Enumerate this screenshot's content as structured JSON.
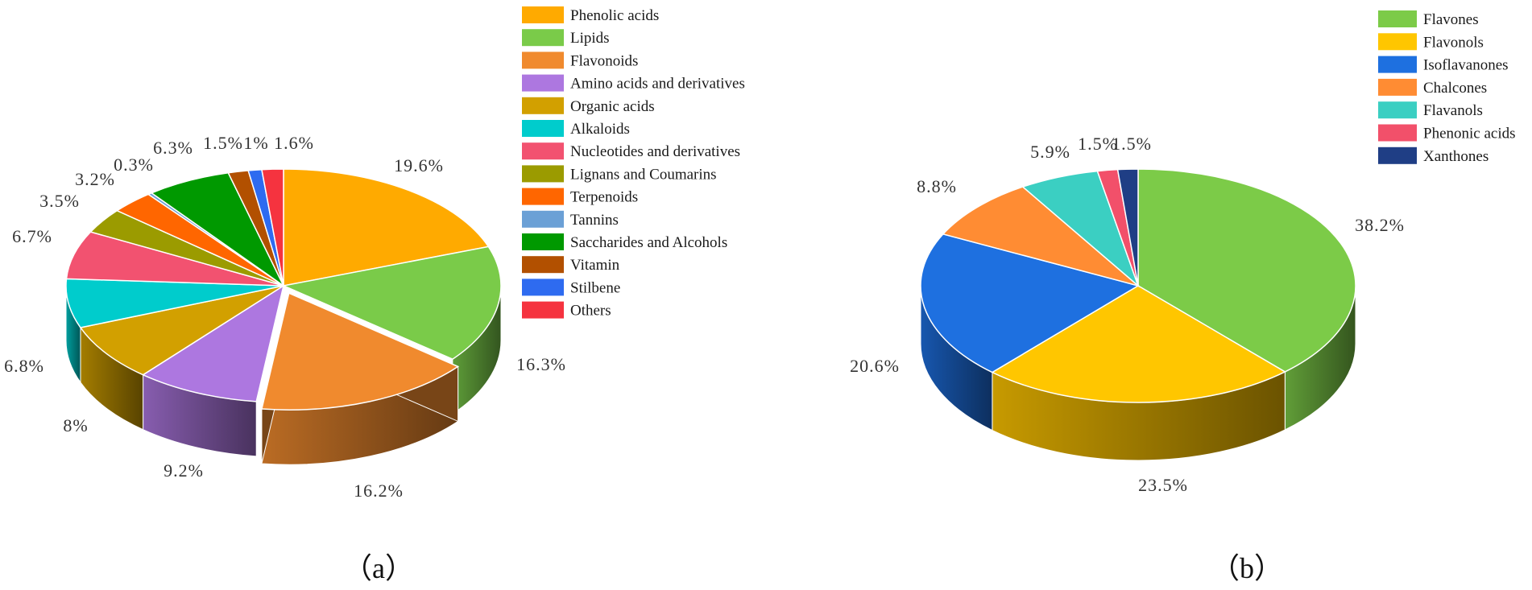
{
  "chart_data": [
    {
      "type": "pie",
      "panel_label": "（a）",
      "series": [
        {
          "name": "Phenolic acids",
          "value": 19.6,
          "label": "19.6%",
          "color": "#FFAA00"
        },
        {
          "name": "Lipids",
          "value": 16.3,
          "label": "16.3%",
          "color": "#7ACB49"
        },
        {
          "name": "Flavonoids",
          "value": 16.2,
          "label": "16.2%",
          "color": "#F08A2E",
          "exploded": true
        },
        {
          "name": "Amino acids and derivatives",
          "value": 9.2,
          "label": "9.2%",
          "color": "#AD77E0"
        },
        {
          "name": "Organic acids",
          "value": 8.0,
          "label": "8%",
          "color": "#D2A000"
        },
        {
          "name": "Alkaloids",
          "value": 6.8,
          "label": "6.8%",
          "color": "#00CCCC"
        },
        {
          "name": "Nucleotides and derivatives",
          "value": 6.7,
          "label": "6.7%",
          "color": "#F25270"
        },
        {
          "name": "Lignans and Coumarins",
          "value": 3.5,
          "label": "3.5%",
          "color": "#9B9B00"
        },
        {
          "name": "Terpenoids",
          "value": 3.2,
          "label": "3.2%",
          "color": "#FF6600"
        },
        {
          "name": "Tannins",
          "value": 0.3,
          "label": "0.3%",
          "color": "#6BA0D6"
        },
        {
          "name": "Saccharides and Alcohols",
          "value": 6.3,
          "label": "6.3%",
          "color": "#009900"
        },
        {
          "name": "Vitamin",
          "value": 1.5,
          "label": "1.5%",
          "color": "#B25000"
        },
        {
          "name": "Stilbene",
          "value": 1.0,
          "label": "1%",
          "color": "#2E6BF0"
        },
        {
          "name": "Others",
          "value": 1.6,
          "label": "1.6%",
          "color": "#F5333F"
        }
      ]
    },
    {
      "type": "pie",
      "panel_label": "（b）",
      "series": [
        {
          "name": "Flavones",
          "value": 38.2,
          "label": "38.2%",
          "color": "#7CCB48"
        },
        {
          "name": "Flavonols",
          "value": 23.5,
          "label": "23.5%",
          "color": "#FFC600"
        },
        {
          "name": "Isoflavanones",
          "value": 20.6,
          "label": "20.6%",
          "color": "#1E70E0"
        },
        {
          "name": "Chalcones",
          "value": 8.8,
          "label": "8.8%",
          "color": "#FF8C33"
        },
        {
          "name": "Flavanols",
          "value": 5.9,
          "label": "5.9%",
          "color": "#3BCFC2"
        },
        {
          "name": "Phenonic acids",
          "value": 1.5,
          "label": "1.5%",
          "color": "#F2506A"
        },
        {
          "name": "Xanthones",
          "value": 1.5,
          "label": "1.5%",
          "color": "#1F3E85"
        }
      ]
    }
  ]
}
